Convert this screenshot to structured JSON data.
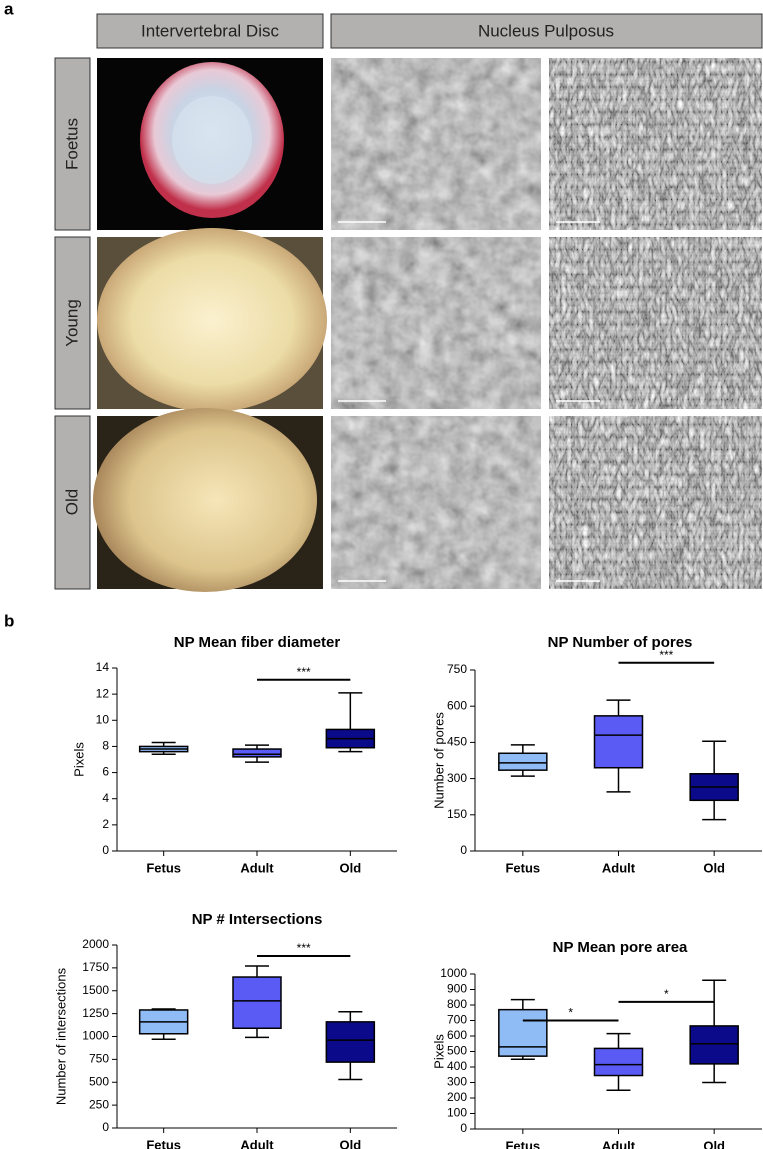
{
  "figure": {
    "panel_a": "a",
    "panel_b": "b",
    "headers": [
      "Intervertebral Disc",
      "Nucleus Pulposus"
    ],
    "rows": [
      "Foetus",
      "Young",
      "Old"
    ]
  },
  "chart_data": [
    {
      "type": "box",
      "title": "NP Mean fiber diameter",
      "y_label": "Pixels",
      "categories": [
        "Fetus",
        "Adult",
        "Old"
      ],
      "colors": [
        "#8fbcf5",
        "#5a5af5",
        "#0a0a8a"
      ],
      "stats": [
        {
          "min": 7.4,
          "q1": 7.6,
          "median": 7.8,
          "q3": 8.0,
          "max": 8.3
        },
        {
          "min": 6.8,
          "q1": 7.2,
          "median": 7.4,
          "q3": 7.8,
          "max": 8.1
        },
        {
          "min": 7.6,
          "q1": 7.9,
          "median": 8.6,
          "q3": 9.3,
          "max": 12.1
        }
      ],
      "ylim": [
        0,
        14
      ],
      "yticks": [
        0,
        2,
        4,
        6,
        8,
        10,
        12,
        14
      ],
      "annotations": [
        {
          "text": "***",
          "between": [
            "Adult",
            "Old"
          ],
          "y": 13.1
        }
      ]
    },
    {
      "type": "box",
      "title": "NP Number of  pores",
      "y_label": "Number of pores",
      "categories": [
        "Fetus",
        "Adult",
        "Old"
      ],
      "colors": [
        "#8fbcf5",
        "#5a5af5",
        "#0a0a8a"
      ],
      "stats": [
        {
          "min": 310,
          "q1": 335,
          "median": 365,
          "q3": 405,
          "max": 440
        },
        {
          "min": 245,
          "q1": 345,
          "median": 480,
          "q3": 560,
          "max": 625
        },
        {
          "min": 130,
          "q1": 210,
          "median": 265,
          "q3": 320,
          "max": 455
        }
      ],
      "ylim": [
        0,
        750
      ],
      "yticks": [
        0,
        150,
        300,
        450,
        600,
        750
      ],
      "annotations": [
        {
          "text": "***",
          "between": [
            "Adult",
            "Old"
          ],
          "y": 780
        }
      ]
    },
    {
      "type": "box",
      "title": "NP # Intersections",
      "y_label": "Number of intersections",
      "categories": [
        "Fetus",
        "Adult",
        "Old"
      ],
      "colors": [
        "#8fbcf5",
        "#5a5af5",
        "#0a0a8a"
      ],
      "stats": [
        {
          "min": 970,
          "q1": 1030,
          "median": 1160,
          "q3": 1290,
          "max": 1300
        },
        {
          "min": 990,
          "q1": 1090,
          "median": 1390,
          "q3": 1650,
          "max": 1770
        },
        {
          "min": 530,
          "q1": 720,
          "median": 960,
          "q3": 1160,
          "max": 1270
        }
      ],
      "ylim": [
        0,
        2000
      ],
      "yticks": [
        0,
        250,
        500,
        750,
        1000,
        1250,
        1500,
        1750,
        2000
      ],
      "annotations": [
        {
          "text": "***",
          "between": [
            "Adult",
            "Old"
          ],
          "y": 1880
        }
      ]
    },
    {
      "type": "box",
      "title": "NP Mean pore area",
      "y_label": "Pixels",
      "categories": [
        "Fetus",
        "Adult",
        "Old"
      ],
      "colors": [
        "#8fbcf5",
        "#5a5af5",
        "#0a0a8a"
      ],
      "stats": [
        {
          "min": 450,
          "q1": 470,
          "median": 530,
          "q3": 770,
          "max": 835
        },
        {
          "min": 250,
          "q1": 345,
          "median": 415,
          "q3": 520,
          "max": 615
        },
        {
          "min": 300,
          "q1": 420,
          "median": 550,
          "q3": 665,
          "max": 960
        }
      ],
      "ylim": [
        0,
        1000
      ],
      "yticks": [
        0,
        100,
        200,
        300,
        400,
        500,
        600,
        700,
        800,
        900,
        1000
      ],
      "annotations": [
        {
          "text": "*",
          "between": [
            "Fetus",
            "Adult"
          ],
          "y": 700
        },
        {
          "text": "*",
          "between": [
            "Adult",
            "Old"
          ],
          "y": 820
        }
      ]
    }
  ]
}
